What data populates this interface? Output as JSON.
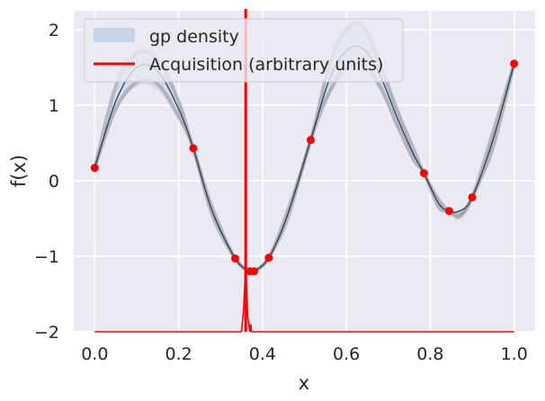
{
  "chart_data": {
    "type": "line",
    "xlabel": "x",
    "ylabel": "f(x)",
    "xlim": [
      -0.05,
      1.05
    ],
    "ylim": [
      -2,
      2.25
    ],
    "grid": true,
    "legend_position": "top-left",
    "xticks": [
      0.0,
      0.2,
      0.4,
      0.6,
      0.8,
      1.0
    ],
    "xtick_labels": [
      "0.0",
      "0.2",
      "0.4",
      "0.6",
      "0.8",
      "1.0"
    ],
    "yticks": [
      -2,
      -1,
      0,
      1,
      2
    ],
    "ytick_labels": [
      "−2",
      "−1",
      "0",
      "1",
      "2"
    ],
    "legend": [
      {
        "label": "gp density",
        "color": "#c9d3e6",
        "kind": "patch"
      },
      {
        "label": "Acquisition (arbitrary units)",
        "color": "#ff0000",
        "kind": "line"
      }
    ],
    "observations": {
      "color": "#ff0000",
      "x": [
        0.0,
        0.235,
        0.335,
        0.37,
        0.38,
        0.415,
        0.515,
        0.785,
        0.845,
        0.9,
        1.0
      ],
      "y": [
        0.17,
        0.43,
        -1.03,
        -1.2,
        -1.2,
        -1.02,
        0.54,
        0.1,
        -0.4,
        -0.22,
        1.55
      ]
    },
    "gp_mean": {
      "x": [
        0.0,
        0.05,
        0.1,
        0.15,
        0.2,
        0.235,
        0.28,
        0.335,
        0.37,
        0.38,
        0.415,
        0.46,
        0.515,
        0.56,
        0.6,
        0.64,
        0.68,
        0.72,
        0.76,
        0.785,
        0.82,
        0.845,
        0.87,
        0.9,
        0.95,
        1.0
      ],
      "y": [
        0.17,
        1.05,
        1.5,
        1.45,
        0.95,
        0.43,
        -0.4,
        -1.03,
        -1.2,
        -1.2,
        -1.02,
        -0.45,
        0.54,
        1.35,
        1.72,
        1.75,
        1.4,
        0.85,
        0.35,
        0.1,
        -0.3,
        -0.4,
        -0.4,
        -0.22,
        0.55,
        1.55
      ]
    },
    "gp_band": {
      "upper": [
        0.17,
        1.2,
        1.72,
        1.7,
        1.1,
        0.43,
        -0.32,
        -1.03,
        -1.2,
        -1.2,
        -1.02,
        -0.38,
        0.54,
        1.6,
        2.05,
        2.07,
        1.6,
        1.0,
        0.45,
        0.1,
        -0.22,
        -0.4,
        -0.38,
        -0.22,
        0.7,
        1.55
      ],
      "lower": [
        0.17,
        0.9,
        1.25,
        1.2,
        0.8,
        0.43,
        -0.48,
        -1.03,
        -1.2,
        -1.2,
        -1.02,
        -0.52,
        0.54,
        1.12,
        1.42,
        1.45,
        1.2,
        0.7,
        0.25,
        0.1,
        -0.38,
        -0.4,
        -0.5,
        -0.22,
        0.4,
        1.55
      ]
    },
    "gp_samples": [
      {
        "y": [
          0.17,
          1.25,
          1.68,
          1.6,
          1.05,
          0.43,
          -0.35,
          -1.03,
          -1.2,
          -1.2,
          -1.02,
          -0.4,
          0.54,
          1.55,
          2.0,
          2.05,
          1.55,
          0.95,
          0.42,
          0.1,
          -0.25,
          -0.4,
          -0.45,
          -0.22,
          0.65,
          1.55
        ]
      },
      {
        "y": [
          0.17,
          0.95,
          1.3,
          1.28,
          0.85,
          0.43,
          -0.45,
          -1.03,
          -1.2,
          -1.2,
          -1.02,
          -0.5,
          0.54,
          1.18,
          1.5,
          1.52,
          1.25,
          0.75,
          0.28,
          0.1,
          -0.35,
          -0.4,
          -0.48,
          -0.22,
          0.45,
          1.55
        ]
      }
    ],
    "acquisition": {
      "color": "#ff0000",
      "baseline_y": -2,
      "peak_x": 0.36,
      "vertical_line_x": 0.36,
      "x": [
        0.0,
        0.35,
        0.355,
        0.358,
        0.36,
        0.362,
        0.365,
        0.37,
        0.372,
        0.374,
        0.378,
        1.0
      ],
      "y": [
        -2,
        -2,
        -1.7,
        -1.35,
        -0.95,
        -1.4,
        -1.8,
        -2,
        -1.9,
        -2,
        -2,
        -2
      ]
    }
  }
}
